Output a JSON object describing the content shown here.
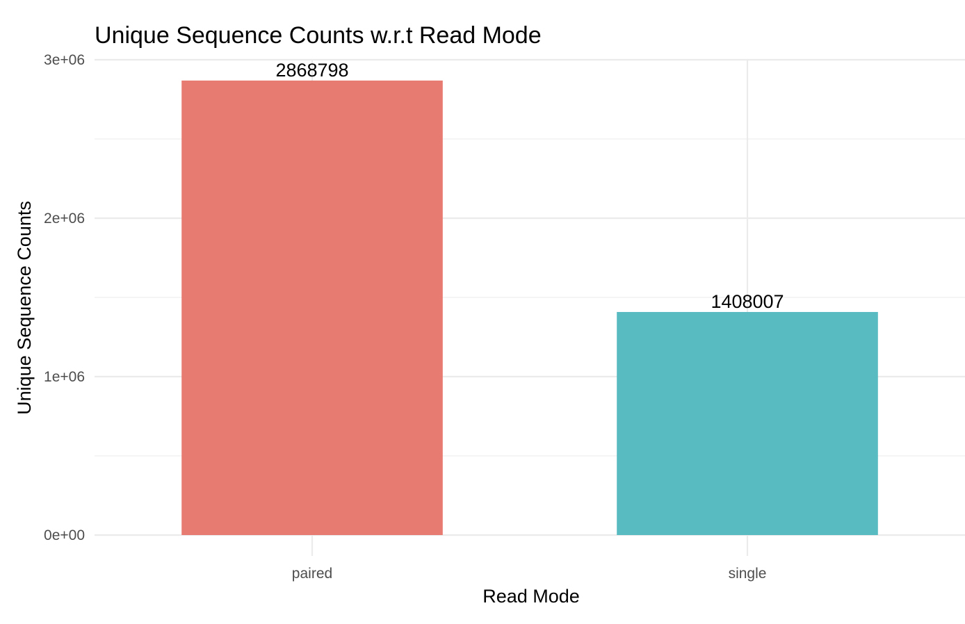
{
  "chart_data": {
    "type": "bar",
    "title": "Unique Sequence Counts w.r.t Read Mode",
    "xlabel": "Read Mode",
    "ylabel": "Unique Sequence Counts",
    "categories": [
      "paired",
      "single"
    ],
    "values": [
      2868798,
      1408007
    ],
    "data_labels": [
      "2868798",
      "1408007"
    ],
    "colors": [
      "#E77B72",
      "#58BBC1"
    ],
    "ylim": [
      0,
      3000000
    ],
    "y_ticks": [
      0,
      1000000,
      2000000,
      3000000
    ],
    "y_tick_labels": [
      "0e+00",
      "1e+06",
      "2e+06",
      "3e+06"
    ],
    "grid": true,
    "legend": "none"
  }
}
